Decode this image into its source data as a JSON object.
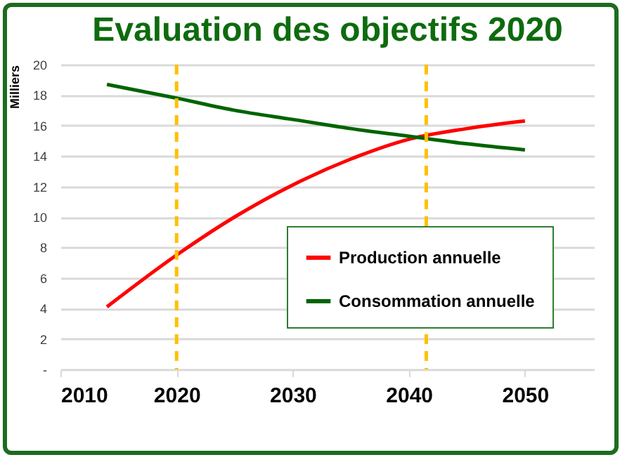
{
  "chart_data": {
    "type": "line",
    "title": "Evaluation des objectifs 2020",
    "ylabel": "Milliers",
    "x": [
      2014,
      2020,
      2025,
      2030,
      2035,
      2040,
      2045,
      2050
    ],
    "series": [
      {
        "name": "Production annuelle",
        "color": "#ff0000",
        "values": [
          4.1,
          7.5,
          10.0,
          12.1,
          13.8,
          15.1,
          15.8,
          16.3
        ]
      },
      {
        "name": "Consommation annuelle",
        "color": "#006400",
        "values": [
          18.7,
          17.8,
          17.0,
          16.4,
          15.8,
          15.3,
          14.8,
          14.4
        ]
      }
    ],
    "xlim": [
      2010,
      2056
    ],
    "xticks": [
      2010,
      2020,
      2030,
      2040,
      2050
    ],
    "ylim": [
      0,
      20
    ],
    "yticks": [
      {
        "value": 0,
        "label": "-"
      },
      2,
      4,
      6,
      8,
      10,
      12,
      14,
      16,
      18,
      20
    ],
    "ref_lines": [
      {
        "axis": "x",
        "value": 2020,
        "color": "#ffc000",
        "line_style": "dashed"
      },
      {
        "axis": "x",
        "value": 2041.5,
        "color": "#ffc000",
        "line_style": "dashed"
      }
    ],
    "grid": "y",
    "legend": "bottom right",
    "marker": "none",
    "line_style": "solid"
  }
}
